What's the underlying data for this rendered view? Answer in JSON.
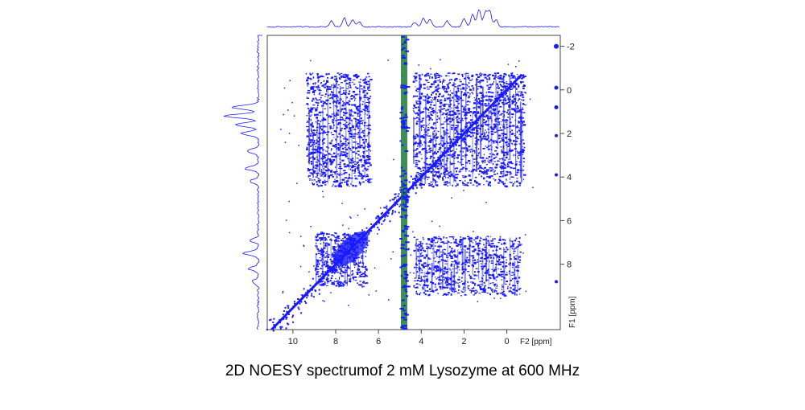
{
  "caption": "2D NOESY spectrumof 2 mM Lysozyme at 600 MHz",
  "chart_data": {
    "type": "scatter",
    "title": "",
    "xlabel": "F2 [ppm]",
    "ylabel": "F1 [ppm]",
    "xlim": [
      11.2,
      -2.5
    ],
    "ylim": [
      -2.5,
      11.0
    ],
    "x_ticks": [
      "10",
      "8",
      "6",
      "4",
      "2",
      "0"
    ],
    "y_ticks": [
      "-2",
      "0",
      "2",
      "4",
      "6",
      "8"
    ],
    "x_tick_values": [
      10,
      8,
      6,
      4,
      2,
      0
    ],
    "y_tick_values": [
      -2,
      0,
      2,
      4,
      6,
      8
    ],
    "grid": false,
    "colors": {
      "contours": "#1a1aff",
      "water": "#1f7a3a",
      "frame": "#444444",
      "projection": "#1a1aff"
    },
    "diagonal": {
      "from": [
        11.0,
        11.0
      ],
      "to": [
        -0.7,
        -0.7
      ]
    },
    "water_line_ppm": 4.8,
    "clusters": [
      {
        "name": "aromatic-aliphatic block",
        "x": [
          6.4,
          9.4
        ],
        "y": [
          -0.8,
          4.4
        ],
        "density": 0.55
      },
      {
        "name": "amide-aliphatic block",
        "x": [
          -0.6,
          4.4
        ],
        "y": [
          6.7,
          9.4
        ],
        "density": 0.5
      },
      {
        "name": "aliphatic-aliphatic block",
        "x": [
          -0.8,
          4.4
        ],
        "y": [
          -0.8,
          4.4
        ],
        "density": 0.5
      },
      {
        "name": "amide-amide region",
        "x": [
          6.6,
          9.0
        ],
        "y": [
          6.5,
          9.0
        ],
        "density": 0.7
      }
    ],
    "f2_projection": [
      {
        "ppm": 8.2,
        "height": 0.35
      },
      {
        "ppm": 7.6,
        "height": 0.5
      },
      {
        "ppm": 7.2,
        "height": 0.4
      },
      {
        "ppm": 6.9,
        "height": 0.3
      },
      {
        "ppm": 4.3,
        "height": 0.25
      },
      {
        "ppm": 3.9,
        "height": 0.5
      },
      {
        "ppm": 3.6,
        "height": 0.4
      },
      {
        "ppm": 2.8,
        "height": 0.35
      },
      {
        "ppm": 2.0,
        "height": 0.45
      },
      {
        "ppm": 1.6,
        "height": 0.7
      },
      {
        "ppm": 1.3,
        "height": 1.0
      },
      {
        "ppm": 1.0,
        "height": 0.85
      },
      {
        "ppm": 0.8,
        "height": 0.9
      },
      {
        "ppm": 0.5,
        "height": 0.4
      }
    ],
    "f1_projection": [
      {
        "ppm": 0.8,
        "height": 0.8
      },
      {
        "ppm": 1.2,
        "height": 1.0
      },
      {
        "ppm": 1.6,
        "height": 0.7
      },
      {
        "ppm": 2.0,
        "height": 0.5
      },
      {
        "ppm": 2.8,
        "height": 0.35
      },
      {
        "ppm": 3.6,
        "height": 0.4
      },
      {
        "ppm": 4.2,
        "height": 0.25
      },
      {
        "ppm": 6.9,
        "height": 0.25
      },
      {
        "ppm": 7.5,
        "height": 0.45
      },
      {
        "ppm": 8.2,
        "height": 0.3
      },
      {
        "ppm": 8.8,
        "height": 0.2
      }
    ]
  }
}
